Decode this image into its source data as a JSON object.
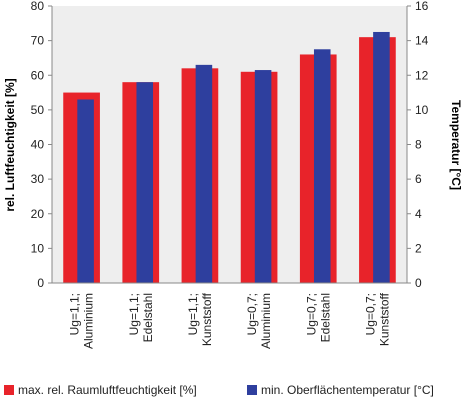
{
  "chart_data": {
    "type": "bar",
    "categories": [
      [
        "Ug=1,1;",
        "Aluminium"
      ],
      [
        "Ug=1,1;",
        "Edelstahl"
      ],
      [
        "Ug=1,1;",
        "Kunststoff"
      ],
      [
        "Ug=0,7;",
        "Aluminium"
      ],
      [
        "Ug=0,7;",
        "Edelstahl"
      ],
      [
        "Ug=0,7;",
        "Kunststoff"
      ]
    ],
    "series": [
      {
        "name": "max. rel. Raumluftfeuchtigkeit [%]",
        "axis": "left",
        "color": "#e8232a",
        "values": [
          55,
          58,
          62,
          61,
          66,
          71
        ]
      },
      {
        "name": "min. Oberflächentemperatur [°C]",
        "axis": "right",
        "color": "#2e3f9e",
        "values": [
          10.6,
          11.6,
          12.6,
          12.3,
          13.5,
          14.5
        ]
      }
    ],
    "ylabel": "rel. Luftfeuchtigkeit [%]",
    "ylabel_right": "Temperatur [°C]",
    "ylim": [
      0,
      80
    ],
    "ylim_right": [
      0,
      16
    ],
    "yticks": [
      "0",
      "10",
      "20",
      "30",
      "40",
      "50",
      "60",
      "70",
      "80"
    ],
    "yticks_right": [
      "0",
      "2",
      "4",
      "6",
      "8",
      "10",
      "12",
      "14",
      "16"
    ],
    "grid": false,
    "legend_position": "bottom",
    "plot_background": "#eeeeee"
  }
}
